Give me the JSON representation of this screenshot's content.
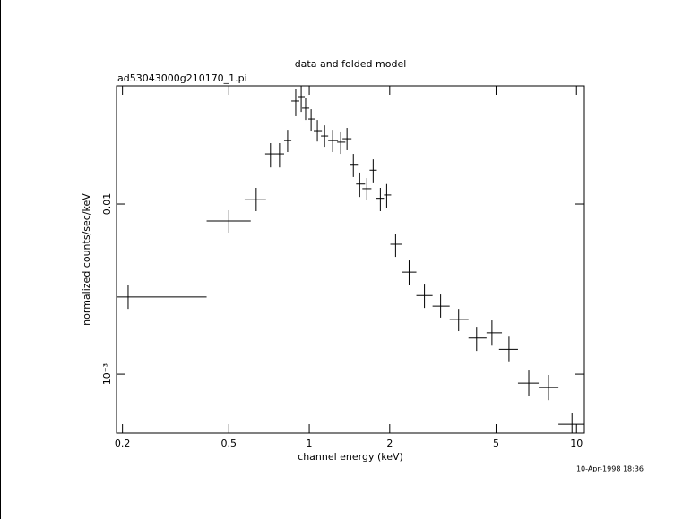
{
  "chart_data": {
    "type": "errorbar",
    "title": "data and folded model",
    "subtitle": "ad53043000g210170_1.pi",
    "x_label": "channel energy (keV)",
    "y_label": "normalized counts/sec/keV",
    "timestamp": "10-Apr-1998 18:36",
    "x_log": true,
    "y_log": true,
    "color": "#000000",
    "xlim": [
      0.19,
      10.7
    ],
    "ylim": [
      0.00045,
      0.0495
    ],
    "xticks": [
      0.2,
      0.5,
      1,
      2,
      5,
      10
    ],
    "yticks": [
      0.01,
      {
        "value": 0.001,
        "label": "10⁻³"
      }
    ],
    "series": [
      {
        "x": [
          0.21,
          0.5,
          0.633,
          0.716,
          0.774,
          0.83,
          0.89,
          0.933,
          0.969,
          1.016,
          1.072,
          1.141,
          1.223,
          1.311,
          1.384,
          1.462,
          1.544,
          1.642,
          1.734,
          1.845,
          1.948,
          2.104,
          2.364,
          2.698,
          3.101,
          3.622,
          4.229,
          4.826,
          5.59,
          6.63,
          7.86,
          9.62
        ],
        "x_low": [
          0.19,
          0.413,
          0.573,
          0.684,
          0.751,
          0.805,
          0.857,
          0.904,
          0.94,
          0.992,
          1.039,
          1.106,
          1.177,
          1.271,
          1.332,
          1.418,
          1.497,
          1.58,
          1.682,
          1.775,
          1.903,
          2.011,
          2.223,
          2.516,
          2.893,
          3.352,
          3.943,
          4.606,
          5.13,
          6.04,
          7.22,
          8.56
        ],
        "x_high": [
          0.413,
          0.604,
          0.689,
          0.751,
          0.805,
          0.857,
          0.918,
          0.962,
          1.0,
          1.048,
          1.115,
          1.177,
          1.281,
          1.364,
          1.439,
          1.52,
          1.617,
          1.708,
          1.79,
          1.903,
          2.025,
          2.223,
          2.516,
          2.893,
          3.352,
          3.943,
          4.606,
          5.26,
          6.04,
          7.22,
          8.56,
          10.7
        ],
        "y": [
          0.00284,
          0.00794,
          0.0106,
          0.0197,
          0.0197,
          0.0236,
          0.0403,
          0.0428,
          0.0366,
          0.0316,
          0.027,
          0.0251,
          0.0236,
          0.0231,
          0.0242,
          0.0171,
          0.0131,
          0.0123,
          0.0158,
          0.0108,
          0.0113,
          0.0058,
          0.00398,
          0.0029,
          0.00251,
          0.0021,
          0.00163,
          0.00175,
          0.0014,
          0.000886,
          0.000834,
          0.000507
        ],
        "y_low": [
          0.00242,
          0.00679,
          0.00908,
          0.0164,
          0.0164,
          0.0202,
          0.0328,
          0.0348,
          0.0312,
          0.027,
          0.0233,
          0.0217,
          0.0202,
          0.0197,
          0.0207,
          0.0144,
          0.011,
          0.0105,
          0.0134,
          0.00908,
          0.00953,
          0.00489,
          0.00336,
          0.00245,
          0.00215,
          0.00179,
          0.00137,
          0.00147,
          0.00119,
          0.000748,
          0.000703,
          0.00045
        ],
        "y_high": [
          0.00336,
          0.00919,
          0.01244,
          0.0228,
          0.0228,
          0.0273,
          0.0472,
          0.0495,
          0.0418,
          0.0361,
          0.0312,
          0.029,
          0.0273,
          0.0267,
          0.028,
          0.0197,
          0.0153,
          0.0142,
          0.0183,
          0.01244,
          0.0131,
          0.0067,
          0.00466,
          0.0034,
          0.00294,
          0.00242,
          0.0019,
          0.00207,
          0.00166,
          0.00105,
          0.000989,
          0.000594
        ]
      }
    ]
  }
}
